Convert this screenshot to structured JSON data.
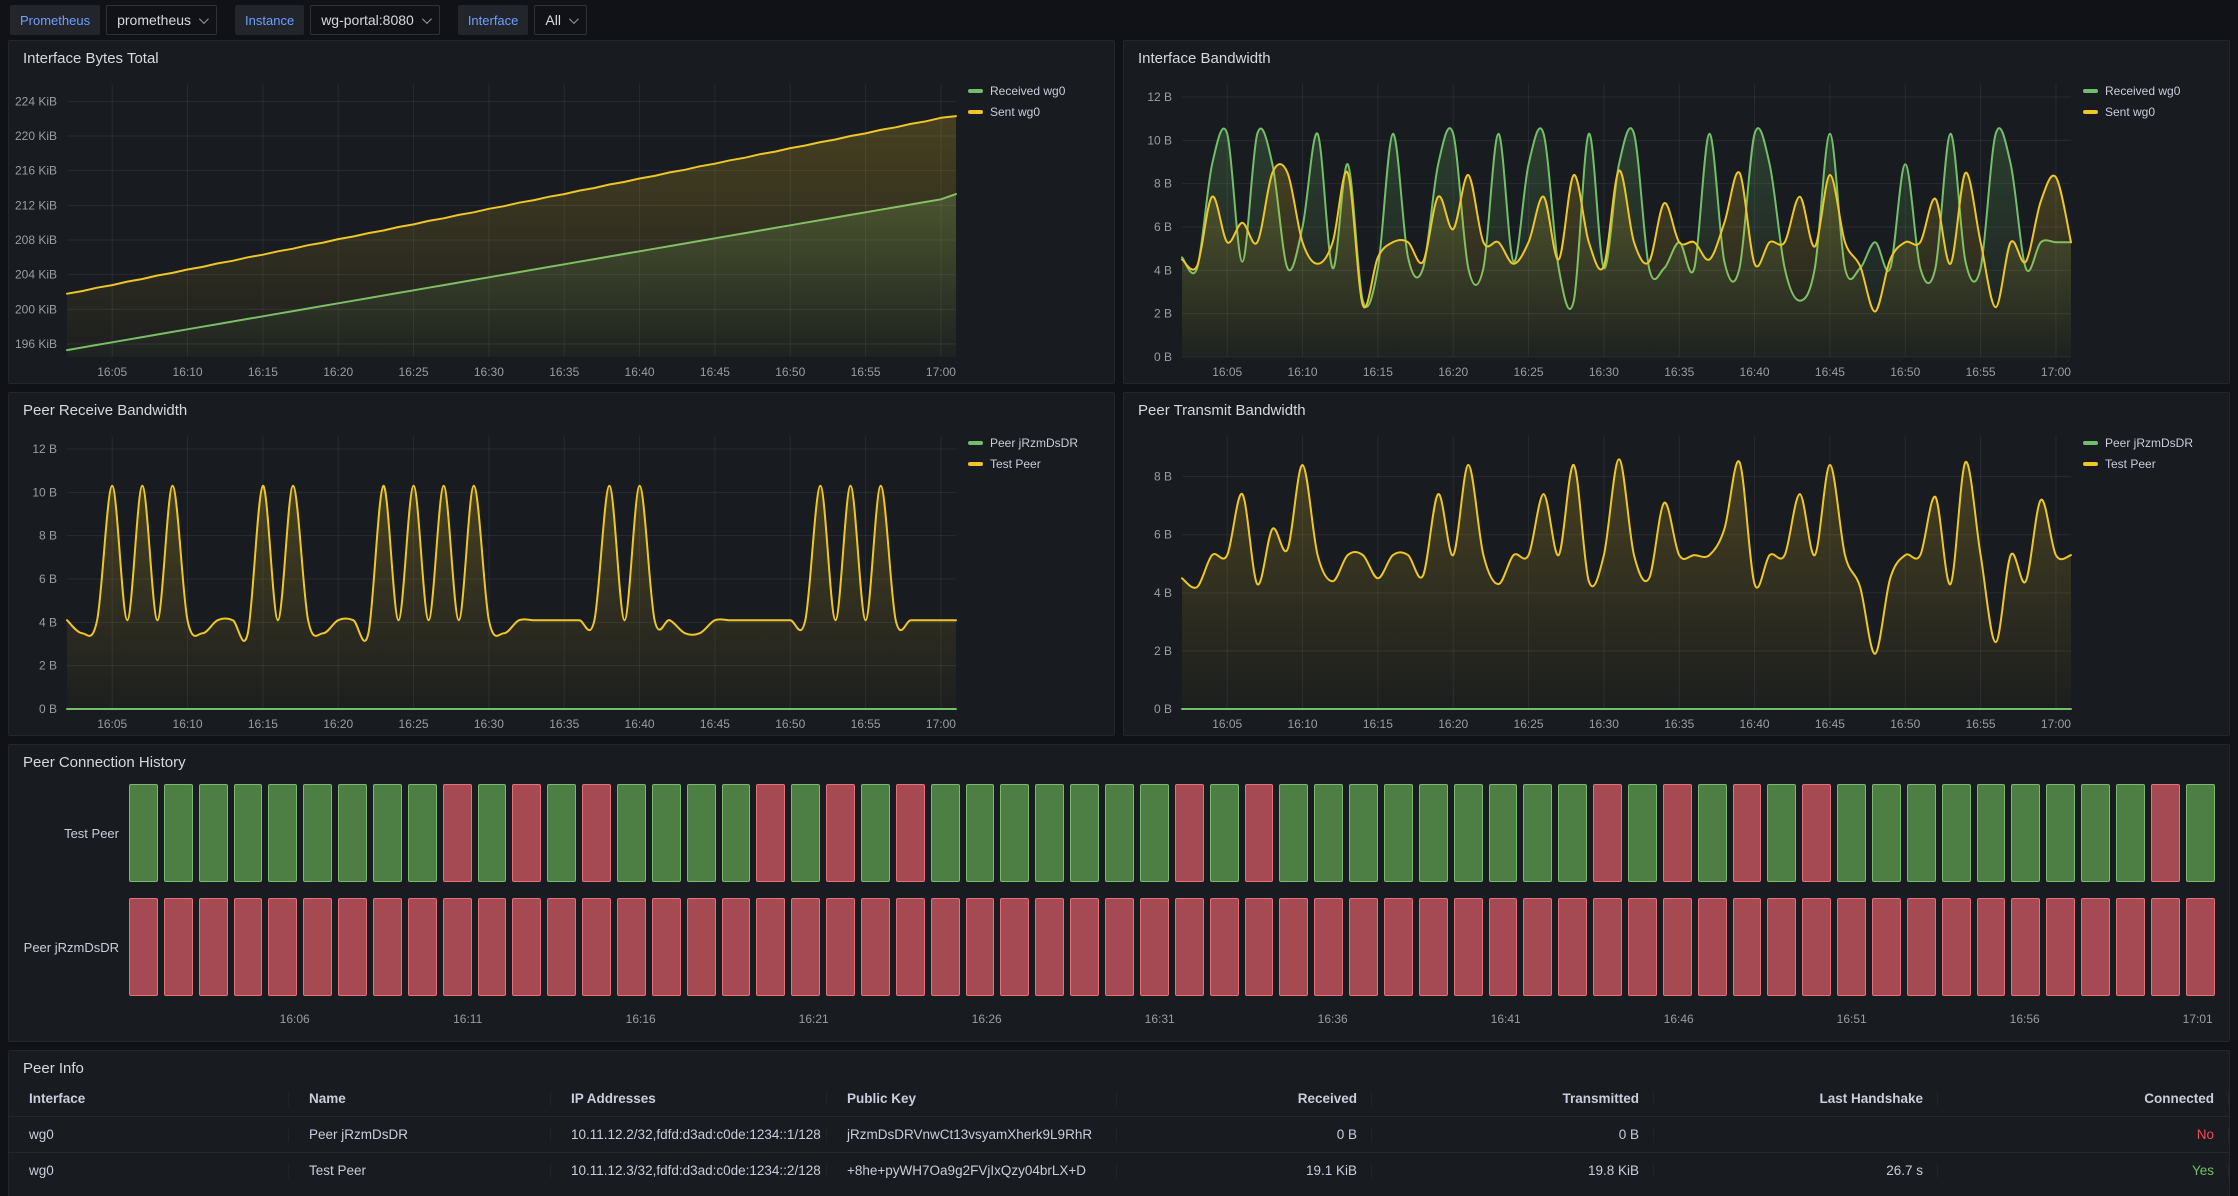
{
  "toolbar": {
    "datasource": {
      "label": "Prometheus",
      "value": "prometheus"
    },
    "instance": {
      "label": "Instance",
      "value": "wg-portal:8080"
    },
    "interface": {
      "label": "Interface",
      "value": "All"
    }
  },
  "colors": {
    "green": "#73bf69",
    "yellow": "#eec626",
    "red": "#f2495c",
    "timeline_connected_fill": "#4d7f44",
    "timeline_disconnected_fill": "#a54a52"
  },
  "chart_data": [
    {
      "type": "line",
      "title": "Interface Bytes Total",
      "unit": "KiB",
      "smooth": false,
      "points": 60,
      "y_min": 194.5,
      "y_max": 226,
      "y_ticks": [
        196,
        200,
        204,
        208,
        212,
        216,
        220,
        224
      ],
      "x_tick_indices": [
        3,
        8,
        13,
        18,
        23,
        28,
        33,
        38,
        43,
        48,
        53,
        58
      ],
      "x_tick_labels": [
        "16:05",
        "16:10",
        "16:15",
        "16:20",
        "16:25",
        "16:30",
        "16:35",
        "16:40",
        "16:45",
        "16:50",
        "16:55",
        "17:00"
      ],
      "legend_position": "right",
      "series": [
        {
          "name": "Received wg0",
          "color": "#73bf69",
          "values": [
            195.3,
            195.6,
            195.9,
            196.2,
            196.5,
            196.8,
            197.1,
            197.4,
            197.7,
            198.0,
            198.3,
            198.6,
            198.9,
            199.2,
            199.5,
            199.8,
            200.1,
            200.4,
            200.7,
            201.0,
            201.3,
            201.6,
            201.9,
            202.2,
            202.5,
            202.8,
            203.1,
            203.4,
            203.7,
            204.0,
            204.3,
            204.6,
            204.9,
            205.2,
            205.5,
            205.8,
            206.1,
            206.4,
            206.7,
            207.0,
            207.3,
            207.6,
            207.9,
            208.2,
            208.5,
            208.8,
            209.1,
            209.4,
            209.7,
            210.0,
            210.3,
            210.6,
            210.9,
            211.2,
            211.5,
            211.8,
            212.1,
            212.4,
            212.7,
            213.3
          ]
        },
        {
          "name": "Sent wg0",
          "color": "#eec626",
          "values": [
            201.8,
            202.1,
            202.5,
            202.8,
            203.2,
            203.5,
            203.9,
            204.2,
            204.6,
            204.9,
            205.3,
            205.6,
            206.0,
            206.3,
            206.7,
            207.0,
            207.4,
            207.7,
            208.1,
            208.4,
            208.8,
            209.1,
            209.5,
            209.8,
            210.2,
            210.5,
            210.9,
            211.2,
            211.6,
            211.9,
            212.3,
            212.6,
            213.0,
            213.3,
            213.7,
            214.0,
            214.4,
            214.7,
            215.1,
            215.4,
            215.8,
            216.1,
            216.5,
            216.8,
            217.2,
            217.5,
            217.9,
            218.2,
            218.6,
            218.9,
            219.3,
            219.6,
            220.0,
            220.3,
            220.7,
            221.0,
            221.4,
            221.7,
            222.1,
            222.3
          ]
        }
      ]
    },
    {
      "type": "line",
      "title": "Interface Bandwidth",
      "unit": "B",
      "smooth": true,
      "points": 60,
      "y_min": 0,
      "y_max": 12.6,
      "y_ticks": [
        0,
        2,
        4,
        6,
        8,
        10,
        12
      ],
      "x_tick_indices": [
        3,
        8,
        13,
        18,
        23,
        28,
        33,
        38,
        43,
        48,
        53,
        58
      ],
      "x_tick_labels": [
        "16:05",
        "16:10",
        "16:15",
        "16:20",
        "16:25",
        "16:30",
        "16:35",
        "16:40",
        "16:45",
        "16:50",
        "16:55",
        "17:00"
      ],
      "legend_position": "right",
      "series": [
        {
          "name": "Received wg0",
          "color": "#73bf69",
          "values": [
            4.6,
            4.1,
            8.9,
            10.3,
            4.4,
            10.3,
            8.9,
            4.1,
            6.0,
            10.3,
            4.1,
            8.9,
            2.6,
            4.1,
            10.3,
            4.6,
            4.1,
            8.9,
            10.3,
            4.1,
            4.1,
            10.3,
            4.4,
            8.9,
            10.3,
            4.1,
            2.6,
            10.3,
            4.1,
            8.9,
            10.3,
            4.1,
            4.1,
            5.3,
            4.1,
            10.3,
            4.4,
            4.1,
            10.3,
            8.9,
            4.1,
            2.6,
            4.1,
            10.3,
            4.1,
            4.1,
            5.3,
            4.1,
            8.9,
            4.1,
            4.1,
            10.3,
            4.4,
            4.1,
            10.3,
            8.9,
            4.1,
            5.3,
            5.3,
            5.3
          ]
        },
        {
          "name": "Sent wg0",
          "color": "#eec626",
          "values": [
            4.5,
            4.2,
            7.4,
            5.3,
            6.2,
            5.3,
            8.5,
            8.5,
            5.3,
            4.3,
            5.3,
            8.5,
            2.4,
            4.6,
            5.3,
            5.3,
            4.4,
            7.4,
            5.9,
            8.4,
            5.3,
            5.3,
            4.3,
            5.3,
            7.4,
            4.5,
            8.4,
            5.3,
            4.2,
            8.6,
            5.3,
            4.4,
            7.1,
            5.3,
            5.3,
            4.5,
            6.2,
            8.5,
            4.3,
            5.3,
            5.3,
            7.4,
            5.1,
            8.4,
            5.3,
            4.2,
            2.1,
            4.5,
            5.3,
            5.3,
            7.3,
            4.3,
            8.5,
            5.3,
            2.3,
            5.3,
            4.4,
            7.2,
            8.3,
            5.3
          ]
        }
      ]
    },
    {
      "type": "line",
      "title": "Peer Receive Bandwidth",
      "unit": "B",
      "smooth": true,
      "points": 60,
      "y_min": 0,
      "y_max": 12.6,
      "y_ticks": [
        0,
        2,
        4,
        6,
        8,
        10,
        12
      ],
      "x_tick_indices": [
        3,
        8,
        13,
        18,
        23,
        28,
        33,
        38,
        43,
        48,
        53,
        58
      ],
      "x_tick_labels": [
        "16:05",
        "16:10",
        "16:15",
        "16:20",
        "16:25",
        "16:30",
        "16:35",
        "16:40",
        "16:45",
        "16:50",
        "16:55",
        "17:00"
      ],
      "legend_position": "right",
      "series": [
        {
          "name": "Peer jRzmDsDR",
          "color": "#73bf69",
          "const": 0
        },
        {
          "name": "Test Peer",
          "color": "#eec626",
          "values": [
            4.1,
            3.5,
            4.1,
            10.3,
            4.1,
            10.3,
            4.1,
            10.3,
            4.1,
            3.5,
            4.1,
            4.1,
            3.5,
            10.3,
            4.1,
            10.3,
            4.1,
            3.5,
            4.1,
            4.1,
            3.5,
            10.3,
            4.1,
            10.3,
            4.1,
            10.3,
            4.1,
            10.3,
            4.1,
            3.5,
            4.1,
            4.1,
            4.1,
            4.1,
            4.1,
            4.1,
            10.3,
            4.1,
            10.3,
            4.1,
            4.1,
            3.5,
            3.5,
            4.1,
            4.1,
            4.1,
            4.1,
            4.1,
            4.1,
            4.1,
            10.3,
            4.1,
            10.3,
            4.1,
            10.3,
            4.1,
            4.1,
            4.1,
            4.1,
            4.1
          ]
        }
      ]
    },
    {
      "type": "line",
      "title": "Peer Transmit Bandwidth",
      "unit": "B",
      "smooth": true,
      "points": 60,
      "y_min": 0,
      "y_max": 9.4,
      "y_ticks": [
        0,
        2,
        4,
        6,
        8
      ],
      "x_tick_indices": [
        3,
        8,
        13,
        18,
        23,
        28,
        33,
        38,
        43,
        48,
        53,
        58
      ],
      "x_tick_labels": [
        "16:05",
        "16:10",
        "16:15",
        "16:20",
        "16:25",
        "16:30",
        "16:35",
        "16:40",
        "16:45",
        "16:50",
        "16:55",
        "17:00"
      ],
      "legend_position": "right",
      "series": [
        {
          "name": "Peer jRzmDsDR",
          "color": "#73bf69",
          "const": 0
        },
        {
          "name": "Test Peer",
          "color": "#eec626",
          "values": [
            4.5,
            4.2,
            5.3,
            5.3,
            7.4,
            4.3,
            6.2,
            5.5,
            8.4,
            5.3,
            4.4,
            5.3,
            5.3,
            4.5,
            5.3,
            5.3,
            4.6,
            7.4,
            5.3,
            8.4,
            5.3,
            4.3,
            5.3,
            5.3,
            7.4,
            5.3,
            8.4,
            4.4,
            5.3,
            8.6,
            5.3,
            4.5,
            7.1,
            5.3,
            5.3,
            5.3,
            6.2,
            8.5,
            4.3,
            5.3,
            5.3,
            7.4,
            5.3,
            8.4,
            5.3,
            4.2,
            1.9,
            4.5,
            5.3,
            5.3,
            7.3,
            4.3,
            8.5,
            5.3,
            2.3,
            5.3,
            4.4,
            7.2,
            5.3,
            5.3
          ]
        }
      ]
    },
    {
      "type": "state-timeline",
      "title": "Peer Connection History",
      "state_colors": {
        "G": "connected-green",
        "R": "disconnected-red"
      },
      "rows": [
        {
          "label": "Test Peer",
          "states": "GGGGGGGGGRGRGRGGGGRGRGRGGGGGGGRGRGGGGGGGGGRGRGRGRGGGGGGGGGRG"
        },
        {
          "label": "Peer jRzmDsDR",
          "states": "RRRRRRRRRRRRRRRRRRRRRRRRRRRRRRRRRRRRRRRRRRRRRRRRRRRRRRRRRRRR"
        }
      ],
      "x_labels": [
        "16:06",
        "16:11",
        "16:16",
        "16:21",
        "16:26",
        "16:31",
        "16:36",
        "16:41",
        "16:46",
        "16:51",
        "16:56",
        "17:01"
      ]
    }
  ],
  "peer_info": {
    "title": "Peer Info",
    "columns": [
      {
        "label": "Interface",
        "align": "left"
      },
      {
        "label": "Name",
        "align": "left"
      },
      {
        "label": "IP Addresses",
        "align": "left"
      },
      {
        "label": "Public Key",
        "align": "left"
      },
      {
        "label": "Received",
        "align": "right"
      },
      {
        "label": "Transmitted",
        "align": "right"
      },
      {
        "label": "Last Handshake",
        "align": "right"
      },
      {
        "label": "Connected",
        "align": "right"
      }
    ],
    "rows": [
      [
        "wg0",
        "Peer jRzmDsDR",
        "10.11.12.2/32,fdfd:d3ad:c0de:1234::1/128",
        "jRzmDsDRVnwCt13vsyamXherk9L9RhR",
        "0 B",
        "0 B",
        "",
        "No"
      ],
      [
        "wg0",
        "Test Peer",
        "10.11.12.3/32,fdfd:d3ad:c0de:1234::2/128",
        "+8he+pyWH7Oa9g2FVjIxQzy04brLX+D",
        "19.1 KiB",
        "19.8 KiB",
        "26.7 s",
        "Yes"
      ]
    ]
  }
}
